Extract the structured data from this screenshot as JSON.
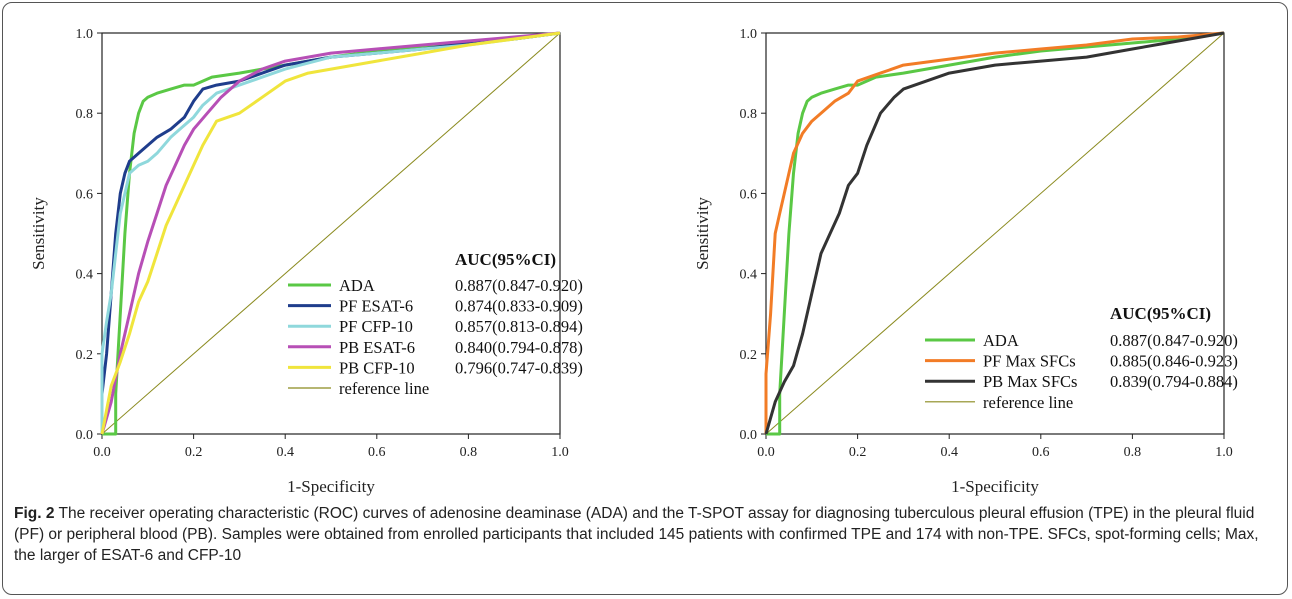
{
  "figure": {
    "caption_label": "Fig. 2",
    "caption_text": "The receiver operating characteristic (ROC) curves of adenosine deaminase (ADA) and the T-SPOT assay for diagnosing tuberculous pleural effusion (TPE) in the pleural fluid (PF) or peripheral blood (PB). Samples were obtained from enrolled participants that included 145 patients with confirmed TPE and 174 with non-TPE. SFCs, spot-forming cells; Max, the larger of ESAT-6 and CFP-10"
  },
  "chart_data": [
    {
      "type": "line",
      "xlabel": "1-Specificity",
      "ylabel": "Sensitivity",
      "xlim": [
        0,
        1
      ],
      "ylim": [
        0,
        1
      ],
      "ticks": [
        "0.0",
        "0.2",
        "0.4",
        "0.6",
        "0.8",
        "1.0"
      ],
      "legend_title": "AUC(95%CI)",
      "legend_position": "bottom-right",
      "series": [
        {
          "name": "ADA",
          "auc": "0.887(0.847-0.920)",
          "color": "#5ac845",
          "x": [
            0,
            0.03,
            0.03,
            0.04,
            0.05,
            0.06,
            0.07,
            0.08,
            0.09,
            0.1,
            0.12,
            0.15,
            0.18,
            0.2,
            0.24,
            0.3,
            0.4,
            0.5,
            0.6,
            0.7,
            0.8,
            0.9,
            1
          ],
          "y": [
            0,
            0,
            0.1,
            0.3,
            0.5,
            0.65,
            0.75,
            0.8,
            0.83,
            0.84,
            0.85,
            0.86,
            0.87,
            0.87,
            0.89,
            0.9,
            0.92,
            0.94,
            0.955,
            0.965,
            0.975,
            0.985,
            1
          ]
        },
        {
          "name": "PF ESAT-6",
          "auc": "0.874(0.833-0.909)",
          "color": "#1f3d8c",
          "x": [
            0,
            0,
            0.01,
            0.02,
            0.03,
            0.04,
            0.05,
            0.06,
            0.08,
            0.1,
            0.12,
            0.15,
            0.18,
            0.2,
            0.22,
            0.25,
            0.3,
            0.35,
            0.4,
            0.5,
            0.6,
            0.7,
            0.8,
            0.9,
            1
          ],
          "y": [
            0,
            0.1,
            0.2,
            0.35,
            0.5,
            0.6,
            0.65,
            0.68,
            0.7,
            0.72,
            0.74,
            0.76,
            0.79,
            0.83,
            0.86,
            0.87,
            0.88,
            0.9,
            0.92,
            0.94,
            0.95,
            0.96,
            0.975,
            0.985,
            1
          ]
        },
        {
          "name": "PF CFP-10",
          "auc": "0.857(0.813-0.894)",
          "color": "#8fd8dc",
          "x": [
            0,
            0,
            0.01,
            0.02,
            0.03,
            0.04,
            0.05,
            0.06,
            0.08,
            0.1,
            0.12,
            0.15,
            0.18,
            0.2,
            0.22,
            0.25,
            0.3,
            0.35,
            0.4,
            0.5,
            0.6,
            0.7,
            0.8,
            0.9,
            1
          ],
          "y": [
            0,
            0.2,
            0.28,
            0.35,
            0.45,
            0.55,
            0.6,
            0.65,
            0.67,
            0.68,
            0.7,
            0.74,
            0.77,
            0.79,
            0.82,
            0.85,
            0.87,
            0.89,
            0.91,
            0.94,
            0.95,
            0.96,
            0.97,
            0.985,
            1
          ]
        },
        {
          "name": "PB ESAT-6",
          "auc": "0.840(0.794-0.878)",
          "color": "#b74fb6",
          "x": [
            0,
            0.02,
            0.04,
            0.06,
            0.08,
            0.1,
            0.12,
            0.14,
            0.16,
            0.18,
            0.2,
            0.23,
            0.26,
            0.3,
            0.35,
            0.4,
            0.5,
            0.6,
            0.7,
            0.8,
            0.9,
            1
          ],
          "y": [
            0,
            0.08,
            0.2,
            0.3,
            0.4,
            0.48,
            0.55,
            0.62,
            0.67,
            0.72,
            0.76,
            0.8,
            0.84,
            0.88,
            0.91,
            0.93,
            0.95,
            0.96,
            0.97,
            0.98,
            0.99,
            1
          ]
        },
        {
          "name": "PB CFP-10",
          "auc": "0.796(0.747-0.839)",
          "color": "#f0e53c",
          "x": [
            0,
            0.02,
            0.04,
            0.06,
            0.08,
            0.1,
            0.12,
            0.14,
            0.16,
            0.18,
            0.2,
            0.22,
            0.25,
            0.3,
            0.35,
            0.4,
            0.45,
            0.5,
            0.6,
            0.7,
            0.8,
            0.9,
            1
          ],
          "y": [
            0,
            0.12,
            0.18,
            0.25,
            0.33,
            0.38,
            0.45,
            0.52,
            0.57,
            0.62,
            0.67,
            0.72,
            0.78,
            0.8,
            0.84,
            0.88,
            0.9,
            0.91,
            0.93,
            0.95,
            0.97,
            0.985,
            1
          ]
        },
        {
          "name": "reference line",
          "auc": "",
          "color": "#8a8a1e",
          "x": [
            0,
            1
          ],
          "y": [
            0,
            1
          ]
        }
      ]
    },
    {
      "type": "line",
      "xlabel": "1-Specificity",
      "ylabel": "Sensitivity",
      "xlim": [
        0,
        1
      ],
      "ylim": [
        0,
        1
      ],
      "ticks": [
        "0.0",
        "0.2",
        "0.4",
        "0.6",
        "0.8",
        "1.0"
      ],
      "legend_title": "AUC(95%CI)",
      "legend_position": "bottom-right",
      "series": [
        {
          "name": "ADA",
          "auc": "0.887(0.847-0.920)",
          "color": "#5ac845",
          "x": [
            0,
            0.03,
            0.03,
            0.04,
            0.05,
            0.06,
            0.07,
            0.08,
            0.09,
            0.1,
            0.12,
            0.15,
            0.18,
            0.2,
            0.24,
            0.3,
            0.4,
            0.5,
            0.6,
            0.7,
            0.8,
            0.9,
            1
          ],
          "y": [
            0,
            0,
            0.1,
            0.3,
            0.5,
            0.65,
            0.75,
            0.8,
            0.83,
            0.84,
            0.85,
            0.86,
            0.87,
            0.87,
            0.89,
            0.9,
            0.92,
            0.94,
            0.955,
            0.965,
            0.975,
            0.985,
            1
          ]
        },
        {
          "name": "PF Max SFCs",
          "auc": "0.885(0.846-0.923)",
          "color": "#f27c26",
          "x": [
            0,
            0,
            0.01,
            0.02,
            0.03,
            0.04,
            0.05,
            0.06,
            0.08,
            0.1,
            0.12,
            0.15,
            0.18,
            0.2,
            0.25,
            0.3,
            0.4,
            0.5,
            0.6,
            0.7,
            0.8,
            0.9,
            1
          ],
          "y": [
            0,
            0.15,
            0.3,
            0.5,
            0.55,
            0.6,
            0.65,
            0.7,
            0.75,
            0.78,
            0.8,
            0.83,
            0.85,
            0.88,
            0.9,
            0.92,
            0.935,
            0.95,
            0.96,
            0.97,
            0.985,
            0.99,
            1
          ]
        },
        {
          "name": "PB Max SFCs",
          "auc": "0.839(0.794-0.884)",
          "color": "#333333",
          "x": [
            0,
            0.02,
            0.04,
            0.06,
            0.08,
            0.1,
            0.12,
            0.14,
            0.16,
            0.18,
            0.2,
            0.22,
            0.25,
            0.28,
            0.3,
            0.35,
            0.4,
            0.5,
            0.6,
            0.7,
            0.8,
            0.9,
            1
          ],
          "y": [
            0,
            0.08,
            0.13,
            0.17,
            0.25,
            0.35,
            0.45,
            0.5,
            0.55,
            0.62,
            0.65,
            0.72,
            0.8,
            0.84,
            0.86,
            0.88,
            0.9,
            0.92,
            0.93,
            0.94,
            0.96,
            0.98,
            1
          ]
        },
        {
          "name": "reference line",
          "auc": "",
          "color": "#8a8a1e",
          "x": [
            0,
            1
          ],
          "y": [
            0,
            1
          ]
        }
      ]
    }
  ]
}
